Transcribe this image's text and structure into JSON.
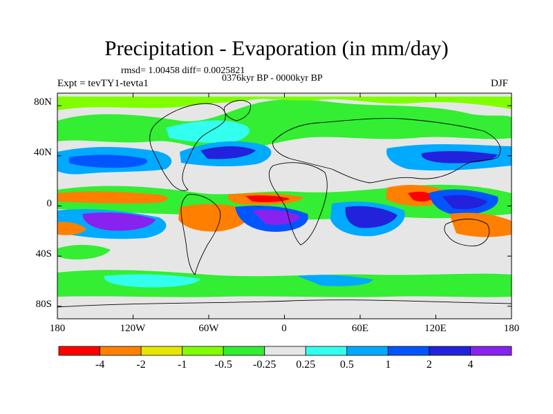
{
  "title": "Precipitation - Evaporation (in mm/day)",
  "stats": "rmsd= 1.00458 diff= 0.0025821",
  "period": "0376kyr BP - 0000kyr BP",
  "experiment": "Expt = tevTY1-tevta1",
  "season": "DJF",
  "lat_labels": [
    "80N",
    "40N",
    "0",
    "40S",
    "80S"
  ],
  "lon_labels": [
    "180",
    "120W",
    "60W",
    "0",
    "60E",
    "120E",
    "180"
  ],
  "colorbar": {
    "colors": [
      "#ff0000",
      "#ff8000",
      "#e6e600",
      "#80ff00",
      "#33ee33",
      "#e6e6e6",
      "#33ffee",
      "#00aaff",
      "#0055ff",
      "#2222dd",
      "#8822ee"
    ],
    "labels": [
      "-4",
      "-2",
      "-1",
      "-0.5",
      "-0.25",
      "0.25",
      "0.5",
      "1",
      "2",
      "4"
    ]
  },
  "background_color": "#e6e6e6"
}
